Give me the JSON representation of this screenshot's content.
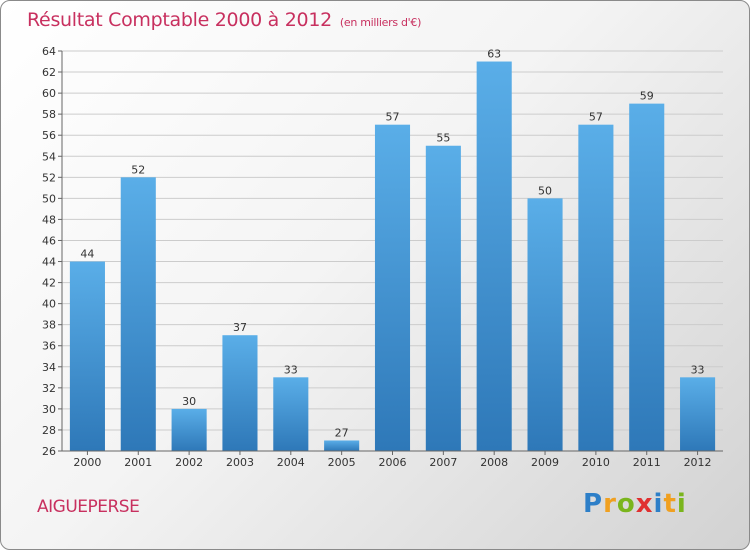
{
  "title": "Résultat Comptable 2000 à 2012",
  "unit_note": "(en milliers d'€)",
  "commune": "AIGUEPERSE",
  "logo": {
    "letters": [
      "P",
      "r",
      "o",
      "x",
      "i",
      "t",
      "i"
    ],
    "colors": [
      "#2d7fc8",
      "#f0a020",
      "#7ab51d",
      "#e03030",
      "#2d7fc8",
      "#f0a020",
      "#7ab51d"
    ]
  },
  "colors": {
    "bar_light": "#5aaee8",
    "bar_dark": "#2e78b8",
    "grid": "#cccccc",
    "title": "#c8305f"
  },
  "chart_data": {
    "type": "bar",
    "title": "Résultat Comptable 2000 à 2012",
    "xlabel": "",
    "ylabel": "",
    "categories": [
      "2000",
      "2001",
      "2002",
      "2003",
      "2004",
      "2005",
      "2006",
      "2007",
      "2008",
      "2009",
      "2010",
      "2011",
      "2012"
    ],
    "values": [
      44,
      52,
      30,
      37,
      33,
      27,
      57,
      55,
      63,
      50,
      57,
      59,
      33
    ],
    "ylim": [
      26,
      64
    ],
    "yticks": [
      26,
      28,
      30,
      32,
      34,
      36,
      38,
      40,
      42,
      44,
      46,
      48,
      50,
      52,
      54,
      56,
      58,
      60,
      62,
      64
    ],
    "grid": true
  }
}
